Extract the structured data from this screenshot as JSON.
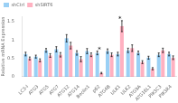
{
  "chart_data": {
    "type": "bar",
    "ylabel": "Relative mRNA Expression",
    "categories": [
      "LC3-I",
      "ATG3",
      "ATG5",
      "ATG7",
      "ATG12",
      "ATG14",
      "Beclin1",
      "p62",
      "ATG4B",
      "ULK1",
      "ULK2",
      "ATG9A",
      "ATG16L1",
      "PIK3C3",
      "PIK3R4"
    ],
    "series": [
      {
        "name": "shCtrl",
        "values": [
          0.62,
          0.55,
          0.72,
          0.75,
          1.05,
          0.65,
          0.7,
          0.65,
          0.7,
          0.62,
          0.72,
          0.65,
          0.52,
          0.6,
          0.62
        ],
        "errors": [
          0.05,
          0.04,
          0.05,
          0.07,
          0.1,
          0.06,
          0.07,
          0.05,
          0.06,
          0.05,
          0.06,
          0.05,
          0.04,
          0.05,
          0.05
        ]
      },
      {
        "name": "shSIRT6",
        "values": [
          0.5,
          0.45,
          0.58,
          0.6,
          0.85,
          0.48,
          0.6,
          0.1,
          0.6,
          1.38,
          0.78,
          0.4,
          0.22,
          0.72,
          0.52
        ],
        "errors": [
          0.04,
          0.04,
          0.05,
          0.06,
          0.09,
          0.07,
          0.05,
          0.02,
          0.05,
          0.15,
          0.09,
          0.04,
          0.03,
          0.06,
          0.05
        ]
      }
    ],
    "ylim": [
      0,
      1.65
    ],
    "yticks": [
      0,
      0.5,
      1,
      1.5
    ],
    "grid": false,
    "legend": "upper left",
    "annotations": [
      {
        "category": "p62",
        "text": "*"
      },
      {
        "category": "ULK1",
        "text": "*"
      }
    ]
  }
}
